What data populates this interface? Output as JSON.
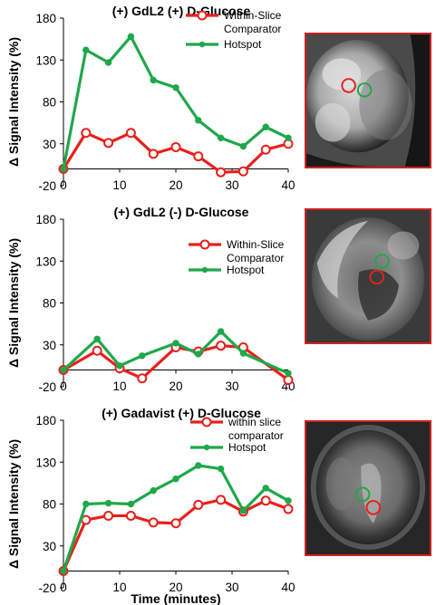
{
  "chart_data": [
    {
      "type": "line",
      "title": "(+) GdL2 (+) D-Glucose",
      "xlabel": "",
      "ylabel": "Δ Signal Intensity (%)",
      "ylim": [
        -20,
        180
      ],
      "yticks": [
        -20,
        30,
        80,
        130,
        180
      ],
      "xlim": [
        0,
        40
      ],
      "xticks": [
        0,
        10,
        20,
        30,
        40
      ],
      "legend_position": "top-right",
      "series": [
        {
          "name": "Within-Slice Comparator",
          "color": "#e8201c",
          "marker": "open-circle",
          "x": [
            0,
            4,
            8,
            12,
            16,
            20,
            24,
            28,
            32,
            36,
            40
          ],
          "y": [
            0,
            43,
            31,
            43,
            18,
            26,
            15,
            -4,
            -3,
            23,
            30
          ]
        },
        {
          "name": "Hotspot",
          "color": "#1fa84a",
          "marker": "filled-circle",
          "x": [
            0,
            4,
            8,
            12,
            16,
            20,
            24,
            28,
            32,
            36,
            40
          ],
          "y": [
            0,
            142,
            127,
            158,
            106,
            97,
            58,
            37,
            27,
            50,
            37
          ]
        }
      ]
    },
    {
      "type": "line",
      "title": "(+) GdL2 (-) D-Glucose",
      "xlabel": "",
      "ylabel": "Δ Signal Intensity (%)",
      "ylim": [
        -20,
        180
      ],
      "yticks": [
        -20,
        30,
        80,
        130,
        180
      ],
      "xlim": [
        0,
        40
      ],
      "xticks": [
        0,
        10,
        20,
        30,
        40
      ],
      "legend_position": "top-right",
      "series": [
        {
          "name": "Within-Slice Comparator",
          "color": "#e8201c",
          "marker": "open-circle",
          "x": [
            0,
            6,
            10,
            14,
            20,
            24,
            28,
            32,
            40
          ],
          "y": [
            0,
            23,
            2,
            -10,
            27,
            22,
            29,
            27,
            -12
          ]
        },
        {
          "name": "Hotspot",
          "color": "#1fa84a",
          "marker": "filled-circle",
          "x": [
            0,
            6,
            10,
            14,
            20,
            24,
            28,
            32,
            40
          ],
          "y": [
            0,
            37,
            5,
            17,
            32,
            19,
            46,
            20,
            -4
          ]
        }
      ]
    },
    {
      "type": "line",
      "title": "(+) Gadavist (+) D-Glucose",
      "xlabel": "Time (minutes)",
      "ylabel": "Δ Signal Intensity (%)",
      "ylim": [
        -20,
        180
      ],
      "yticks": [
        -20,
        30,
        80,
        130,
        180
      ],
      "xlim": [
        0,
        40
      ],
      "xticks": [
        0,
        10,
        20,
        30,
        40
      ],
      "legend_position": "top-right",
      "series": [
        {
          "name": "within slice comparator",
          "color": "#e8201c",
          "marker": "open-circle",
          "x": [
            0,
            4,
            8,
            12,
            16,
            20,
            24,
            28,
            32,
            36,
            40
          ],
          "y": [
            0,
            61,
            66,
            66,
            58,
            57,
            79,
            85,
            71,
            84,
            74
          ]
        },
        {
          "name": "Hotspot",
          "color": "#1fa84a",
          "marker": "filled-circle",
          "x": [
            0,
            4,
            8,
            12,
            16,
            20,
            24,
            28,
            32,
            36,
            40
          ],
          "y": [
            0,
            80,
            81,
            80,
            96,
            110,
            126,
            122,
            72,
            99,
            84
          ]
        }
      ]
    }
  ]
}
